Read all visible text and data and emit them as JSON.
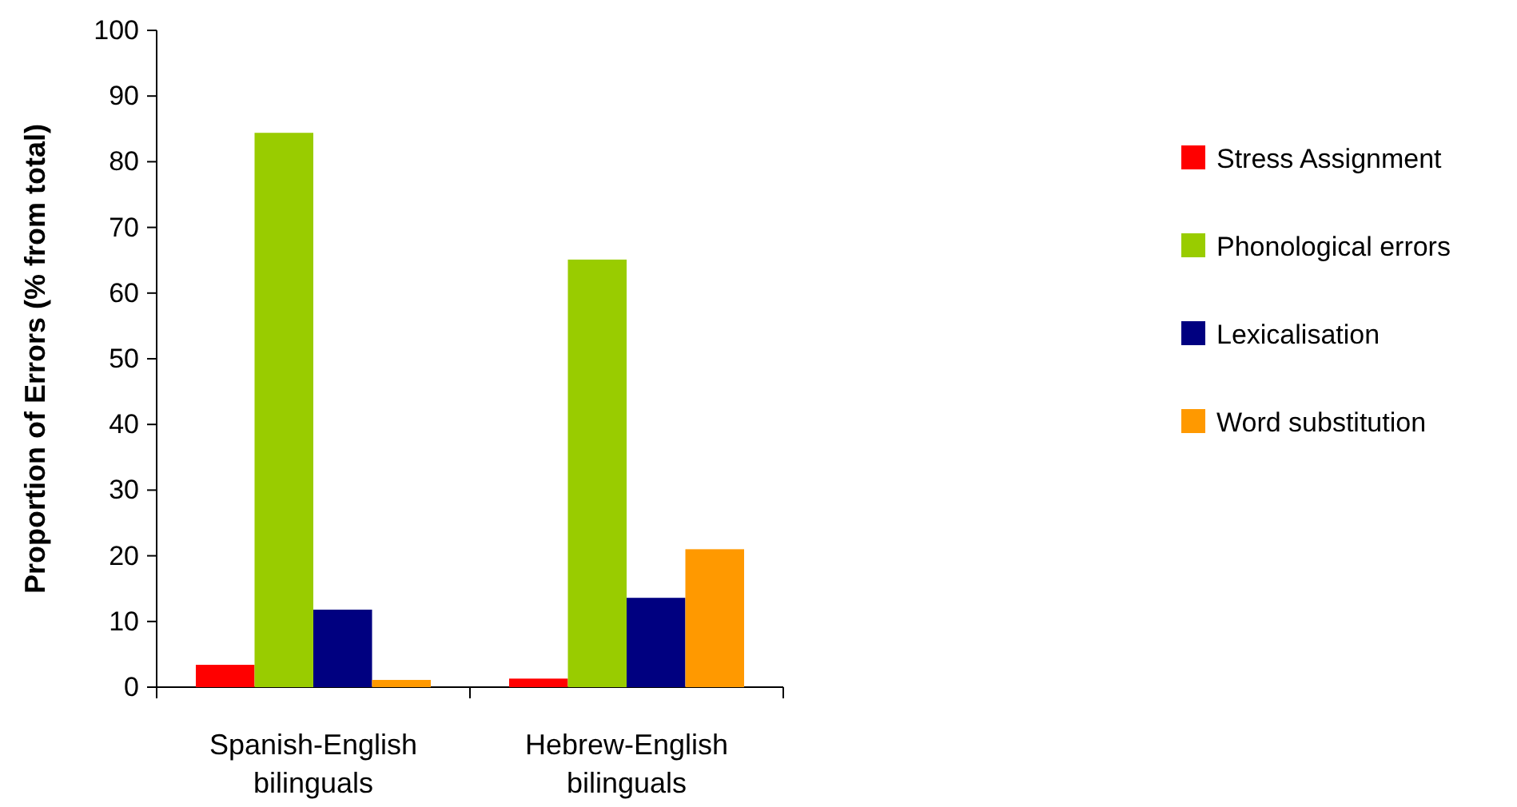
{
  "chart_data": {
    "type": "bar",
    "ylabel": "Proportion of Errors (% from total)",
    "categories": [
      "Spanish-English bilinguals",
      "Hebrew-English bilinguals"
    ],
    "series": [
      {
        "name": "Stress Assignment",
        "color": "#ff0000",
        "values": [
          3.4,
          1.3
        ]
      },
      {
        "name": "Phonological errors",
        "color": "#99cc00",
        "values": [
          84.4,
          65.1
        ]
      },
      {
        "name": "Lexicalisation",
        "color": "#000080",
        "values": [
          11.8,
          13.6
        ]
      },
      {
        "name": "Word substitution",
        "color": "#ff9900",
        "values": [
          1.1,
          21.0
        ]
      }
    ],
    "ylim": [
      0,
      100
    ],
    "yticks": [
      0,
      10,
      20,
      30,
      40,
      50,
      60,
      70,
      80,
      90,
      100
    ],
    "legend": "right"
  }
}
